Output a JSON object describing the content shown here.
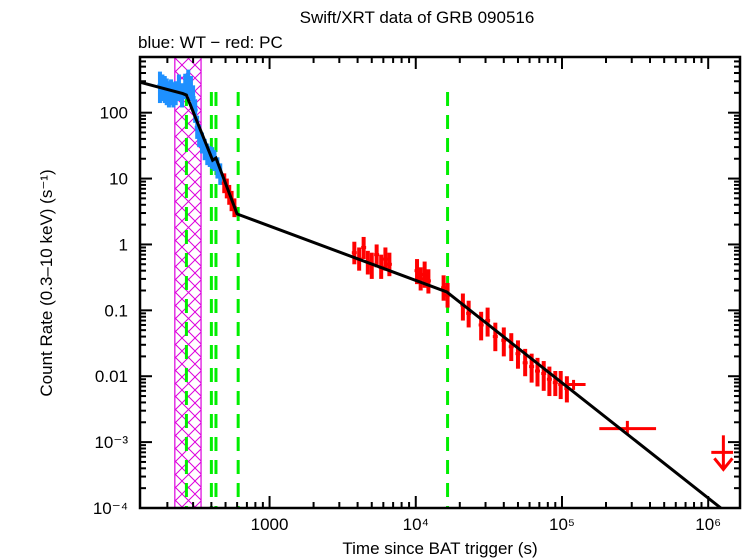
{
  "chart_data": {
    "type": "scatter",
    "title": "Swift/XRT data of GRB 090516",
    "subtitle": "blue: WT − red: PC",
    "xlabel": "Time since BAT trigger (s)",
    "ylabel": "Count Rate (0.3–10 keV) (s⁻¹)",
    "xscale": "log",
    "yscale": "log",
    "xlim": [
      130,
      1650000
    ],
    "ylim": [
      0.0001,
      700
    ],
    "grid": false,
    "x_ticks": [
      {
        "value": 1000,
        "label": "1000"
      },
      {
        "value": 10000,
        "label": "10⁴"
      },
      {
        "value": 100000,
        "label": "10⁵"
      },
      {
        "value": 1000000,
        "label": "10⁶"
      }
    ],
    "y_ticks": [
      {
        "value": 100,
        "label": "100"
      },
      {
        "value": 10,
        "label": "10"
      },
      {
        "value": 1,
        "label": "1"
      },
      {
        "value": 0.1,
        "label": "0.1"
      },
      {
        "value": 0.01,
        "label": "0.01"
      },
      {
        "value": 0.001,
        "label": "10⁻³"
      },
      {
        "value": 0.0001,
        "label": "10⁻⁴"
      }
    ],
    "series": [
      {
        "name": "WT",
        "color": "#1e90ff",
        "points": [
          [
            178,
            260,
            140,
            420
          ],
          [
            185,
            240,
            150,
            380
          ],
          [
            192,
            230,
            140,
            360
          ],
          [
            198,
            220,
            130,
            330
          ],
          [
            205,
            200,
            120,
            300
          ],
          [
            212,
            210,
            130,
            320
          ],
          [
            220,
            190,
            120,
            290
          ],
          [
            228,
            200,
            130,
            300
          ],
          [
            240,
            230,
            150,
            380
          ],
          [
            252,
            190,
            120,
            280
          ],
          [
            265,
            240,
            160,
            390
          ],
          [
            278,
            280,
            180,
            450
          ],
          [
            290,
            230,
            150,
            360
          ],
          [
            300,
            170,
            110,
            260
          ],
          [
            310,
            110,
            70,
            160
          ],
          [
            320,
            60,
            40,
            90
          ],
          [
            330,
            45,
            30,
            65
          ],
          [
            345,
            35,
            24,
            50
          ],
          [
            360,
            28,
            19,
            40
          ],
          [
            375,
            24,
            16,
            34
          ],
          [
            390,
            22,
            15,
            31
          ],
          [
            405,
            21,
            14,
            30
          ],
          [
            420,
            19,
            13,
            27
          ],
          [
            440,
            15,
            10,
            21
          ],
          [
            460,
            12,
            8,
            17
          ]
        ]
      },
      {
        "name": "PC",
        "color": "#ff0000",
        "points": [
          [
            490,
            8.5,
            6,
            12
          ],
          [
            510,
            7,
            5,
            10
          ],
          [
            530,
            5.5,
            4,
            8
          ],
          [
            550,
            4.5,
            3.2,
            6.5
          ],
          [
            575,
            3.6,
            2.6,
            5
          ],
          [
            3800,
            0.75,
            0.5,
            1.1
          ],
          [
            4100,
            0.6,
            0.4,
            0.9
          ],
          [
            4400,
            0.9,
            0.6,
            1.3
          ],
          [
            4700,
            0.55,
            0.35,
            0.8
          ],
          [
            5000,
            0.5,
            0.3,
            0.75
          ],
          [
            5400,
            0.7,
            0.45,
            1.0
          ],
          [
            5800,
            0.45,
            0.3,
            0.7
          ],
          [
            6200,
            0.6,
            0.4,
            0.9
          ],
          [
            6600,
            0.5,
            0.33,
            0.75
          ],
          [
            10200,
            0.4,
            0.25,
            0.6
          ],
          [
            10800,
            0.3,
            0.2,
            0.45
          ],
          [
            11500,
            0.35,
            0.22,
            0.55
          ],
          [
            12200,
            0.28,
            0.18,
            0.42
          ],
          [
            15500,
            0.22,
            0.14,
            0.34
          ],
          [
            16500,
            0.17,
            0.11,
            0.26
          ],
          [
            21000,
            0.12,
            0.07,
            0.18
          ],
          [
            23000,
            0.09,
            0.055,
            0.14
          ],
          [
            28000,
            0.06,
            0.035,
            0.095
          ],
          [
            31000,
            0.07,
            0.04,
            0.11
          ],
          [
            35000,
            0.04,
            0.024,
            0.065
          ],
          [
            40000,
            0.035,
            0.02,
            0.055
          ],
          [
            45000,
            0.028,
            0.017,
            0.045
          ],
          [
            50000,
            0.022,
            0.013,
            0.035
          ],
          [
            56000,
            0.016,
            0.01,
            0.026
          ],
          [
            62000,
            0.014,
            0.008,
            0.022
          ],
          [
            68000,
            0.012,
            0.007,
            0.019
          ],
          [
            75000,
            0.011,
            0.006,
            0.017
          ],
          [
            82000,
            0.009,
            0.005,
            0.014
          ],
          [
            90000,
            0.008,
            0.005,
            0.012
          ],
          [
            98000,
            0.0075,
            0.0045,
            0.012
          ],
          [
            108000,
            0.0065,
            0.004,
            0.01
          ]
        ]
      },
      {
        "name": "PC binned",
        "color": "#ff0000",
        "binned": [
          {
            "x": 120000,
            "x_lo": 103000,
            "x_hi": 145000,
            "y": 0.0075,
            "y_lo": 0.0062,
            "y_hi": 0.0088
          },
          {
            "x": 280000,
            "x_lo": 180000,
            "x_hi": 440000,
            "y": 0.0016,
            "y_lo": 0.0013,
            "y_hi": 0.0021
          }
        ]
      },
      {
        "name": "PC upper limit",
        "color": "#ff0000",
        "upper_limits": [
          {
            "x": 1270000,
            "x_lo": 1050000,
            "x_hi": 1480000,
            "y": 0.0007
          }
        ]
      }
    ],
    "model_fit": {
      "name": "broken power-law fit",
      "color": "#000000",
      "points": [
        [
          130,
          290
        ],
        [
          255,
          195
        ],
        [
          270,
          185
        ],
        [
          408,
          19
        ],
        [
          430,
          20.5
        ],
        [
          600,
          2.9
        ],
        [
          16300,
          0.19
        ],
        [
          1220000,
          0.0001
        ]
      ]
    },
    "break_times": {
      "color": "#00ee00",
      "style": "dashed",
      "values": [
        270,
        400,
        430,
        610,
        16500
      ]
    },
    "excluded_interval": {
      "color": "#dd00dd",
      "pattern": "cross-hatch",
      "x_range": [
        225,
        340
      ]
    }
  }
}
